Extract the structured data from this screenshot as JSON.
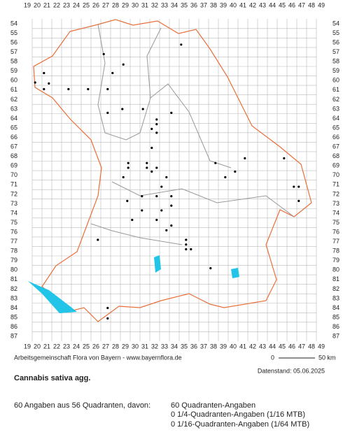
{
  "map": {
    "col_labels": [
      19,
      20,
      21,
      22,
      23,
      24,
      25,
      26,
      27,
      28,
      29,
      30,
      31,
      32,
      33,
      34,
      35,
      36,
      37,
      38,
      39,
      40,
      41,
      42,
      43,
      44,
      45,
      46,
      47,
      48,
      49
    ],
    "row_labels": [
      54,
      55,
      56,
      57,
      58,
      59,
      60,
      61,
      62,
      63,
      64,
      65,
      66,
      67,
      68,
      69,
      70,
      71,
      72,
      73,
      74,
      75,
      76,
      77,
      78,
      79,
      80,
      81,
      82,
      83,
      84,
      85,
      86,
      87
    ],
    "points": [
      {
        "x": 34.7,
        "y": 56.2
      },
      {
        "x": 26.8,
        "y": 57.2
      },
      {
        "x": 28.8,
        "y": 58.3
      },
      {
        "x": 20.7,
        "y": 59.2
      },
      {
        "x": 27.7,
        "y": 59.2
      },
      {
        "x": 19.8,
        "y": 60.2
      },
      {
        "x": 21.2,
        "y": 60.3
      },
      {
        "x": 20.7,
        "y": 60.9
      },
      {
        "x": 23.2,
        "y": 60.9
      },
      {
        "x": 25.2,
        "y": 60.9
      },
      {
        "x": 27.2,
        "y": 60.9
      },
      {
        "x": 27.2,
        "y": 63.4
      },
      {
        "x": 28.7,
        "y": 63.0
      },
      {
        "x": 30.8,
        "y": 63.0
      },
      {
        "x": 33.7,
        "y": 63.4
      },
      {
        "x": 32.2,
        "y": 64.1
      },
      {
        "x": 32.2,
        "y": 64.6
      },
      {
        "x": 31.7,
        "y": 65.1
      },
      {
        "x": 32.2,
        "y": 65.5
      },
      {
        "x": 31.7,
        "y": 67.1
      },
      {
        "x": 29.3,
        "y": 68.7
      },
      {
        "x": 31.2,
        "y": 68.7
      },
      {
        "x": 38.2,
        "y": 68.7
      },
      {
        "x": 41.2,
        "y": 68.2
      },
      {
        "x": 45.2,
        "y": 68.2
      },
      {
        "x": 29.3,
        "y": 69.2
      },
      {
        "x": 31.2,
        "y": 69.2
      },
      {
        "x": 32.2,
        "y": 69.2
      },
      {
        "x": 31.7,
        "y": 69.6
      },
      {
        "x": 40.2,
        "y": 69.6
      },
      {
        "x": 28.8,
        "y": 70.2
      },
      {
        "x": 33.2,
        "y": 70.2
      },
      {
        "x": 39.2,
        "y": 70.2
      },
      {
        "x": 32.7,
        "y": 71.2
      },
      {
        "x": 46.2,
        "y": 71.2
      },
      {
        "x": 46.7,
        "y": 71.2
      },
      {
        "x": 29.2,
        "y": 72.7
      },
      {
        "x": 30.7,
        "y": 72.2
      },
      {
        "x": 32.2,
        "y": 72.2
      },
      {
        "x": 33.7,
        "y": 72.2
      },
      {
        "x": 46.7,
        "y": 72.7
      },
      {
        "x": 30.7,
        "y": 73.7
      },
      {
        "x": 33.7,
        "y": 73.2
      },
      {
        "x": 32.7,
        "y": 73.7
      },
      {
        "x": 29.7,
        "y": 74.7
      },
      {
        "x": 32.2,
        "y": 74.7
      },
      {
        "x": 33.7,
        "y": 75.3
      },
      {
        "x": 33.2,
        "y": 75.8
      },
      {
        "x": 26.2,
        "y": 76.8
      },
      {
        "x": 35.2,
        "y": 76.8
      },
      {
        "x": 35.2,
        "y": 77.3
      },
      {
        "x": 35.2,
        "y": 77.8
      },
      {
        "x": 35.7,
        "y": 77.8
      },
      {
        "x": 37.7,
        "y": 79.8
      },
      {
        "x": 27.2,
        "y": 84.0
      },
      {
        "x": 27.2,
        "y": 85.1
      }
    ],
    "credit": "Arbeitsgemeinschaft Flora von Bayern - www.bayernflora.de",
    "scale_start": "0",
    "scale_end": "50 km",
    "date": "Datenstand: 05.06.2025",
    "species": "Cannabis sativa agg.",
    "summary": "60 Angaben aus 56 Quadranten, davon:",
    "details": [
      "60 Quadranten-Angaben",
      "0 1/4-Quadranten-Angaben (1/16 MTB)",
      "0 1/16-Quadranten-Angaben (1/64 MTB)"
    ]
  }
}
